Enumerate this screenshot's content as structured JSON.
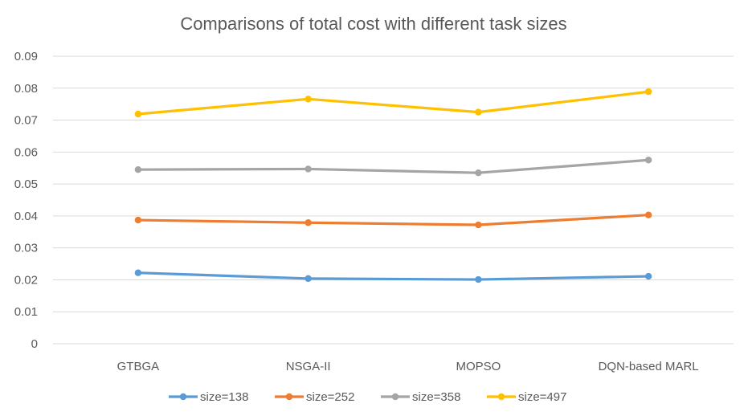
{
  "chart_data": {
    "type": "line",
    "title": "Comparisons of total cost with different task sizes",
    "xlabel": "",
    "ylabel": "",
    "categories": [
      "GTBGA",
      "NSGA-II",
      "MOPSO",
      "DQN-based MARL"
    ],
    "ylim": [
      0,
      0.09
    ],
    "yticks": [
      "0",
      "0.01",
      "0.02",
      "0.03",
      "0.04",
      "0.05",
      "0.06",
      "0.07",
      "0.08",
      "0.09"
    ],
    "grid": true,
    "legend_position": "bottom",
    "series": [
      {
        "name": "size=138",
        "color": "#5b9bd5",
        "values": [
          0.0222,
          0.0204,
          0.0201,
          0.0211
        ]
      },
      {
        "name": "size=252",
        "color": "#ed7d31",
        "values": [
          0.0387,
          0.0379,
          0.0372,
          0.0403
        ]
      },
      {
        "name": "size=358",
        "color": "#a5a5a5",
        "values": [
          0.0545,
          0.0547,
          0.0535,
          0.0575
        ]
      },
      {
        "name": "size=497",
        "color": "#ffc000",
        "values": [
          0.0719,
          0.0766,
          0.0725,
          0.0789
        ]
      }
    ]
  }
}
